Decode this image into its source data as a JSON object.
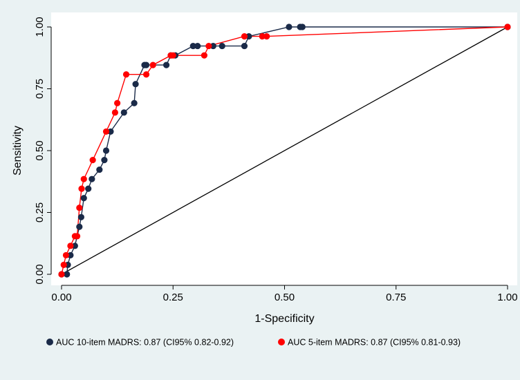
{
  "chart_data": {
    "type": "line",
    "title": "",
    "xlabel": "1-Specificity",
    "ylabel": "Sensitivity",
    "xlim": [
      0,
      1
    ],
    "ylim": [
      0,
      1
    ],
    "x_ticks": [
      "0.00",
      "0.25",
      "0.50",
      "0.75",
      "1.00"
    ],
    "y_ticks": [
      "0.00",
      "0.25",
      "0.50",
      "0.75",
      "1.00"
    ],
    "grid": false,
    "legend_position": "bottom",
    "colors": {
      "background": "#eaf2f3",
      "plot_background": "#ffffff",
      "series_10_item": "#1a2a48",
      "series_5_item": "#ff0000",
      "reference_line": "#000000"
    },
    "series": [
      {
        "name": "AUC 10-item MADRS: 0.87  (CI95% 0.82-0.92)",
        "x": [
          0,
          0.012,
          0.014,
          0.02,
          0.03,
          0.04,
          0.044,
          0.05,
          0.06,
          0.068,
          0.085,
          0.096,
          0.1,
          0.11,
          0.14,
          0.163,
          0.166,
          0.186,
          0.19,
          0.235,
          0.245,
          0.255,
          0.295,
          0.305,
          0.34,
          0.36,
          0.41,
          0.42,
          0.51,
          0.535,
          0.54,
          1
        ],
        "y": [
          0,
          0,
          0.038,
          0.077,
          0.115,
          0.192,
          0.231,
          0.308,
          0.346,
          0.385,
          0.423,
          0.462,
          0.5,
          0.577,
          0.654,
          0.692,
          0.769,
          0.846,
          0.846,
          0.846,
          0.885,
          0.885,
          0.923,
          0.923,
          0.923,
          0.923,
          0.923,
          0.962,
          1,
          1,
          1,
          1
        ]
      },
      {
        "name": "AUC 5-item MADRS: 0.87 (CI95% 0.81-0.93)",
        "x": [
          0,
          0.005,
          0.01,
          0.02,
          0.03,
          0.035,
          0.04,
          0.045,
          0.05,
          0.07,
          0.1,
          0.12,
          0.125,
          0.145,
          0.19,
          0.205,
          0.245,
          0.25,
          0.32,
          0.33,
          0.41,
          0.45,
          0.46,
          1
        ],
        "y": [
          0,
          0.038,
          0.077,
          0.115,
          0.154,
          0.154,
          0.269,
          0.346,
          0.385,
          0.462,
          0.577,
          0.654,
          0.692,
          0.808,
          0.808,
          0.846,
          0.885,
          0.885,
          0.885,
          0.923,
          0.962,
          0.962,
          0.962,
          1
        ]
      }
    ],
    "reference_line": {
      "x": [
        0,
        1
      ],
      "y": [
        0,
        1
      ]
    }
  }
}
